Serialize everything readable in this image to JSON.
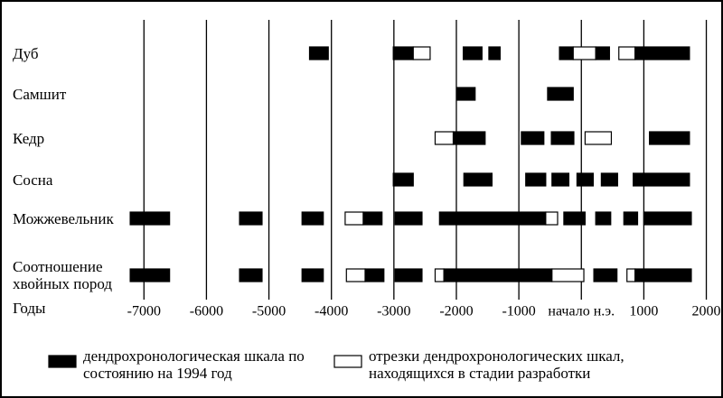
{
  "chart_data": {
    "type": "timeline",
    "x_label": "Годы",
    "xlim": [
      -7250,
      2050
    ],
    "xticks": [
      -7000,
      -6000,
      -5000,
      -4000,
      -3000,
      -2000,
      -1000,
      {
        "value": 0,
        "label": "начало н.э."
      },
      1000,
      2000
    ],
    "grid": true,
    "series": [
      {
        "name": "дендрохронологическая шкала по состоянию на 1994 год",
        "color": "#000000"
      },
      {
        "name": "отрезки дендрохронологических шкал, находящихся в стадии разработки",
        "color": "#ffffff"
      }
    ],
    "rows": [
      {
        "name": "Дуб",
        "segments": [
          {
            "start": -4350,
            "end": -4050,
            "series": 0
          },
          {
            "start": -3010,
            "end": -2690,
            "series": 0
          },
          {
            "start": -2690,
            "end": -2420,
            "series": 1
          },
          {
            "start": -1890,
            "end": -1590,
            "series": 0
          },
          {
            "start": -1480,
            "end": -1300,
            "series": 0
          },
          {
            "start": -350,
            "end": -130,
            "series": 0
          },
          {
            "start": -130,
            "end": 230,
            "series": 1
          },
          {
            "start": 230,
            "end": 450,
            "series": 0
          },
          {
            "start": 600,
            "end": 860,
            "series": 1
          },
          {
            "start": 860,
            "end": 1730,
            "series": 0
          }
        ]
      },
      {
        "name": "Самшит",
        "segments": [
          {
            "start": -1990,
            "end": -1700,
            "series": 0
          },
          {
            "start": -540,
            "end": -130,
            "series": 0
          }
        ]
      },
      {
        "name": "Кедр",
        "segments": [
          {
            "start": -2340,
            "end": -2050,
            "series": 1
          },
          {
            "start": -2050,
            "end": -1540,
            "series": 0
          },
          {
            "start": -960,
            "end": -600,
            "series": 0
          },
          {
            "start": -480,
            "end": -120,
            "series": 0
          },
          {
            "start": 60,
            "end": 480,
            "series": 1
          },
          {
            "start": 1090,
            "end": 1730,
            "series": 0
          }
        ]
      },
      {
        "name": "Сосна",
        "segments": [
          {
            "start": -3010,
            "end": -2690,
            "series": 0
          },
          {
            "start": -1880,
            "end": -1430,
            "series": 0
          },
          {
            "start": -890,
            "end": -570,
            "series": 0
          },
          {
            "start": -470,
            "end": -200,
            "series": 0
          },
          {
            "start": -70,
            "end": 190,
            "series": 0
          },
          {
            "start": 320,
            "end": 580,
            "series": 0
          },
          {
            "start": 830,
            "end": 1730,
            "series": 0
          }
        ]
      },
      {
        "name": "Можжевельник",
        "segments": [
          {
            "start": -7220,
            "end": -6590,
            "series": 0
          },
          {
            "start": -5470,
            "end": -5110,
            "series": 0
          },
          {
            "start": -4470,
            "end": -4130,
            "series": 0
          },
          {
            "start": -3780,
            "end": -3490,
            "series": 1
          },
          {
            "start": -3490,
            "end": -3190,
            "series": 0
          },
          {
            "start": -2980,
            "end": -2550,
            "series": 0
          },
          {
            "start": -2270,
            "end": -570,
            "series": 0
          },
          {
            "start": -570,
            "end": -380,
            "series": 1
          },
          {
            "start": -280,
            "end": 60,
            "series": 0
          },
          {
            "start": 230,
            "end": 470,
            "series": 0
          },
          {
            "start": 680,
            "end": 900,
            "series": 0
          },
          {
            "start": 1000,
            "end": 1760,
            "series": 0
          }
        ]
      },
      {
        "name": "Соотношение хвойных пород",
        "segments": [
          {
            "start": -7220,
            "end": -6590,
            "series": 0
          },
          {
            "start": -5470,
            "end": -5110,
            "series": 0
          },
          {
            "start": -4470,
            "end": -4130,
            "series": 0
          },
          {
            "start": -3760,
            "end": -3460,
            "series": 1
          },
          {
            "start": -3460,
            "end": -3160,
            "series": 0
          },
          {
            "start": -2980,
            "end": -2550,
            "series": 0
          },
          {
            "start": -2340,
            "end": -2200,
            "series": 1
          },
          {
            "start": -2200,
            "end": -470,
            "series": 0
          },
          {
            "start": -470,
            "end": 40,
            "series": 1
          },
          {
            "start": 200,
            "end": 570,
            "series": 0
          },
          {
            "start": 730,
            "end": 860,
            "series": 1
          },
          {
            "start": 860,
            "end": 1760,
            "series": 0
          }
        ]
      }
    ]
  }
}
